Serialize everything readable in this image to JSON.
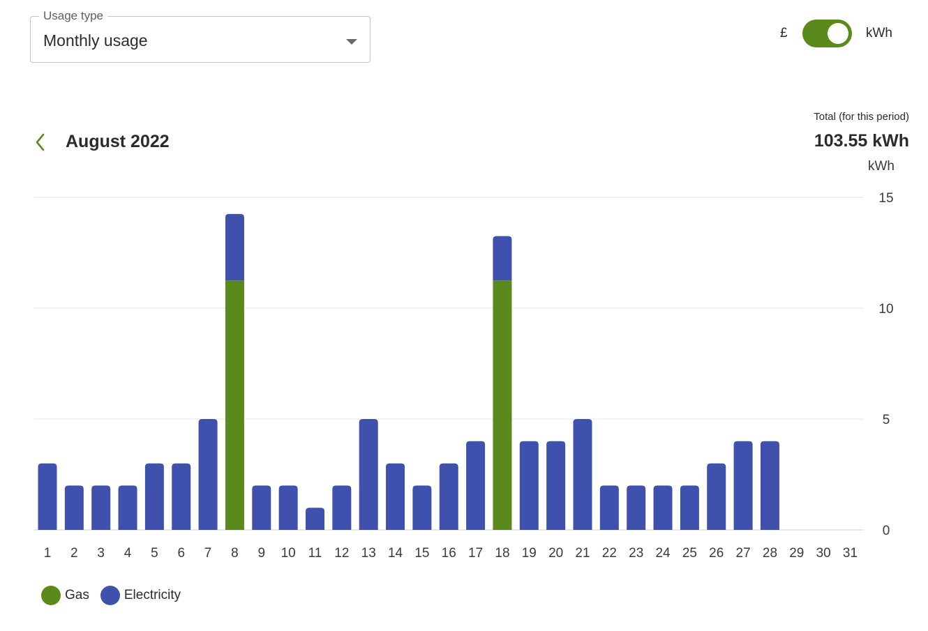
{
  "usage_type": {
    "label": "Usage type",
    "value": "Monthly usage"
  },
  "unit_toggle": {
    "left_label": "£",
    "right_label": "kWh",
    "selected": "kWh"
  },
  "period": {
    "title": "August 2022",
    "total_label": "Total (for this period)",
    "total_value": "103.55 kWh"
  },
  "colors": {
    "gas": "#5b8a1c",
    "electricity": "#4050ad",
    "accent": "#5b8a1c"
  },
  "icons": {
    "back": "chevron-left-icon",
    "dropdown": "caret-down-icon"
  },
  "chart_data": {
    "type": "bar",
    "stacked": true,
    "ylabel": "kWh",
    "ylim": [
      0,
      15
    ],
    "yticks": [
      0,
      5,
      10,
      15
    ],
    "grid": true,
    "legend_position": "bottom-left",
    "categories": [
      "1",
      "2",
      "3",
      "4",
      "5",
      "6",
      "7",
      "8",
      "9",
      "10",
      "11",
      "12",
      "13",
      "14",
      "15",
      "16",
      "17",
      "18",
      "19",
      "20",
      "21",
      "22",
      "23",
      "24",
      "25",
      "26",
      "27",
      "28",
      "29",
      "30",
      "31"
    ],
    "series": [
      {
        "name": "Gas",
        "color": "#5b8a1c",
        "values": [
          0,
          0,
          0,
          0,
          0,
          0,
          0,
          11.25,
          0,
          0,
          0,
          0,
          0,
          0,
          0,
          0,
          0,
          11.25,
          0,
          0,
          0,
          0,
          0,
          0,
          0,
          0,
          0,
          0,
          null,
          null,
          null
        ]
      },
      {
        "name": "Electricity",
        "color": "#4050ad",
        "values": [
          3,
          2,
          2,
          2,
          3,
          3,
          5,
          3,
          2,
          2,
          1,
          2,
          5,
          3,
          2,
          3,
          4,
          2,
          4,
          4,
          5,
          2,
          2,
          2,
          2,
          3,
          4,
          4,
          null,
          null,
          null
        ]
      }
    ]
  }
}
